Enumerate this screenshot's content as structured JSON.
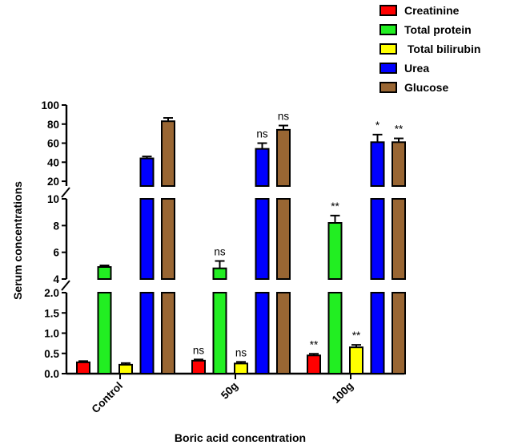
{
  "chart_data": {
    "type": "bar",
    "title": "",
    "xlabel": "Boric acid concentration",
    "ylabel": "Serum concentrations",
    "categories": [
      "Control",
      "50g",
      "100g"
    ],
    "broken_axis": true,
    "axis_segments": [
      {
        "ylim": [
          0,
          2.0
        ],
        "ticks": [
          "0.0",
          "0.5",
          "1.0",
          "1.5",
          "2.0"
        ]
      },
      {
        "ylim": [
          4,
          10
        ],
        "ticks": [
          "4",
          "6",
          "8",
          "10"
        ]
      },
      {
        "ylim": [
          15,
          100
        ],
        "ticks": [
          "20",
          "40",
          "60",
          "80",
          "100"
        ]
      }
    ],
    "legend_position": "top-right",
    "series": [
      {
        "name": "Creatinine",
        "color": "#ff0000",
        "values": [
          0.28,
          0.32,
          0.45
        ],
        "errors": [
          0.03,
          0.03,
          0.04
        ],
        "significance": [
          "",
          "ns",
          "**"
        ]
      },
      {
        "name": "Total protein",
        "color": "#22ee22",
        "values": [
          4.9,
          4.8,
          8.2
        ],
        "errors": [
          0.12,
          0.55,
          0.55
        ],
        "significance": [
          "",
          "ns",
          "**"
        ]
      },
      {
        "name": " Total bilirubin",
        "color": "#ffff00",
        "values": [
          0.22,
          0.25,
          0.65
        ],
        "errors": [
          0.04,
          0.04,
          0.06
        ],
        "significance": [
          "",
          "ns",
          "**"
        ]
      },
      {
        "name": "Urea",
        "color": "#0000ff",
        "values": [
          44,
          54,
          61
        ],
        "errors": [
          2,
          6,
          8
        ],
        "significance": [
          "",
          "ns",
          "*"
        ]
      },
      {
        "name": "Glucose",
        "color": "#996633",
        "values": [
          83,
          74,
          61
        ],
        "errors": [
          3.5,
          4.5,
          4
        ],
        "significance": [
          "",
          "ns",
          "**"
        ]
      }
    ]
  }
}
